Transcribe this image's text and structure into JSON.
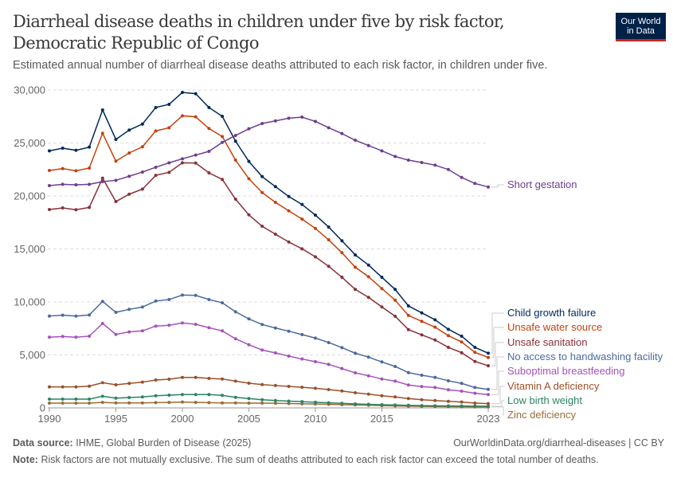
{
  "header": {
    "title": "Diarrheal disease deaths in children under five by risk factor, Democratic Republic of Congo",
    "subtitle": "Estimated annual number of diarrheal disease deaths attributed to each risk factor, in children under five.",
    "logo": {
      "line1": "Our World",
      "line2": "in Data"
    }
  },
  "footer": {
    "source_label": "Data source:",
    "source": "IHME, Global Burden of Disease (2025)",
    "url": "OurWorldinData.org/diarrheal-diseases | CC BY",
    "note_label": "Note:",
    "note": "Risk factors are not mutually exclusive. The sum of deaths attributed to each risk factor can exceed the total number of deaths."
  },
  "chart_data": {
    "type": "line",
    "title": "Diarrheal disease deaths in children under five by risk factor, Democratic Republic of Congo",
    "xlabel": "",
    "ylabel": "",
    "xlim": [
      1990,
      2023
    ],
    "ylim": [
      0,
      30000
    ],
    "x_ticks": [
      1990,
      1995,
      2000,
      2005,
      2010,
      2015,
      2023
    ],
    "y_ticks": [
      {
        "v": 0,
        "label": "0"
      },
      {
        "v": 5000,
        "label": "5,000"
      },
      {
        "v": 10000,
        "label": "10,000"
      },
      {
        "v": 15000,
        "label": "15,000"
      },
      {
        "v": 20000,
        "label": "20,000"
      },
      {
        "v": 25000,
        "label": "25,000"
      },
      {
        "v": 30000,
        "label": "30,000"
      }
    ],
    "grid": "horizontal dashed",
    "legend": "right, end-of-line labels",
    "x": [
      1990,
      1991,
      1992,
      1993,
      1994,
      1995,
      1996,
      1997,
      1998,
      1999,
      2000,
      2001,
      2002,
      2003,
      2004,
      2005,
      2006,
      2007,
      2008,
      2009,
      2010,
      2011,
      2012,
      2013,
      2014,
      2015,
      2016,
      2017,
      2018,
      2019,
      2020,
      2021,
      2022,
      2023
    ],
    "series": [
      {
        "name": "Short gestation",
        "color": "#6d3e91",
        "values": [
          20980,
          21100,
          21050,
          21100,
          21350,
          21480,
          21860,
          22260,
          22710,
          23130,
          23510,
          23860,
          24210,
          25060,
          25710,
          26340,
          26840,
          27090,
          27340,
          27440,
          27040,
          26440,
          25890,
          25260,
          24760,
          24260,
          23730,
          23380,
          23160,
          22910,
          22500,
          21750,
          21180,
          20850
        ]
      },
      {
        "name": "Child growth failure",
        "color": "#00295b",
        "values": [
          24260,
          24510,
          24310,
          24610,
          28120,
          25340,
          26220,
          26790,
          28350,
          28650,
          29770,
          29650,
          28350,
          27520,
          25170,
          23260,
          21830,
          20880,
          19950,
          19200,
          18200,
          17070,
          15770,
          14440,
          13480,
          12330,
          11180,
          9620,
          8970,
          8320,
          7420,
          6770,
          5710,
          5160
        ]
      },
      {
        "name": "Unsafe water source",
        "color": "#c1440e",
        "values": [
          22410,
          22580,
          22380,
          22630,
          25920,
          23290,
          24060,
          24640,
          26140,
          26440,
          27570,
          27470,
          26370,
          25610,
          23380,
          21630,
          20320,
          19400,
          18600,
          17820,
          16940,
          15860,
          14640,
          13280,
          12380,
          11260,
          10170,
          8720,
          8170,
          7620,
          6820,
          6220,
          5240,
          4760
        ]
      },
      {
        "name": "Unsafe sanitation",
        "color": "#883039",
        "values": [
          18720,
          18870,
          18700,
          18920,
          21680,
          19470,
          20170,
          20650,
          21950,
          22230,
          23130,
          23110,
          22180,
          21560,
          19700,
          18220,
          17140,
          16390,
          15660,
          15010,
          14260,
          13360,
          12330,
          11180,
          10430,
          9530,
          8650,
          7390,
          6890,
          6410,
          5710,
          5210,
          4380,
          3980
        ]
      },
      {
        "name": "No access to handwashing facility",
        "color": "#4c6a9c",
        "values": [
          8670,
          8750,
          8670,
          8770,
          10050,
          9020,
          9300,
          9520,
          10080,
          10230,
          10650,
          10620,
          10230,
          9920,
          9070,
          8400,
          7870,
          7540,
          7240,
          6920,
          6590,
          6170,
          5690,
          5160,
          4790,
          4340,
          3910,
          3330,
          3080,
          2880,
          2560,
          2310,
          1930,
          1750
        ]
      },
      {
        "name": "Suboptimal breastfeeding",
        "color": "#a652ba",
        "values": [
          6670,
          6740,
          6670,
          6770,
          7970,
          6940,
          7170,
          7270,
          7720,
          7800,
          8020,
          7890,
          7570,
          7270,
          6520,
          5960,
          5460,
          5190,
          4890,
          4610,
          4360,
          4110,
          3710,
          3310,
          3030,
          2730,
          2530,
          2160,
          2010,
          1930,
          1710,
          1580,
          1380,
          1260
        ]
      },
      {
        "name": "Vitamin A deficiency",
        "color": "#9a5129",
        "values": [
          1980,
          1980,
          1980,
          2050,
          2380,
          2180,
          2310,
          2430,
          2630,
          2710,
          2880,
          2880,
          2780,
          2730,
          2530,
          2330,
          2200,
          2110,
          2030,
          1950,
          1850,
          1730,
          1600,
          1430,
          1300,
          1150,
          1030,
          880,
          770,
          700,
          620,
          550,
          450,
          400
        ]
      },
      {
        "name": "Low birth weight",
        "color": "#2c8465",
        "values": [
          830,
          830,
          830,
          830,
          1100,
          920,
          980,
          1030,
          1150,
          1200,
          1260,
          1260,
          1260,
          1180,
          1000,
          880,
          770,
          700,
          640,
          590,
          540,
          480,
          430,
          380,
          340,
          300,
          270,
          240,
          220,
          200,
          190,
          180,
          170,
          160
        ]
      },
      {
        "name": "Zinc deficiency",
        "color": "#996d39",
        "values": [
          450,
          450,
          450,
          450,
          520,
          470,
          470,
          470,
          500,
          520,
          550,
          520,
          500,
          470,
          470,
          450,
          450,
          430,
          410,
          390,
          370,
          340,
          310,
          280,
          250,
          220,
          190,
          160,
          140,
          120,
          110,
          100,
          90,
          80
        ]
      }
    ]
  }
}
